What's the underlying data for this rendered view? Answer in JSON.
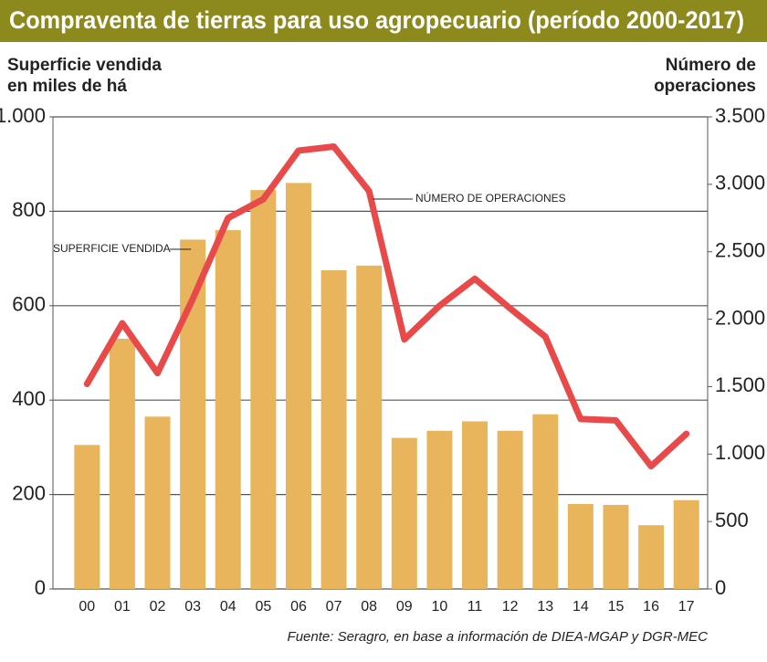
{
  "chart_data": {
    "type": "bar",
    "title": "Compraventa de tierras para uso agropecuario (período 2000-2017)",
    "y_label": [
      "Superficie vendida",
      "en miles de há"
    ],
    "y2_label": [
      "Número de",
      "operaciones"
    ],
    "categories": [
      "00",
      "01",
      "02",
      "03",
      "04",
      "05",
      "06",
      "07",
      "08",
      "09",
      "10",
      "11",
      "12",
      "13",
      "14",
      "15",
      "16",
      "17"
    ],
    "series": [
      {
        "name": "SUPERFICIE VENDIDA",
        "type": "bar",
        "color": "#e8b55c",
        "values": [
          305,
          530,
          365,
          740,
          760,
          845,
          860,
          675,
          685,
          320,
          335,
          355,
          335,
          370,
          180,
          178,
          135,
          188
        ]
      },
      {
        "name": "NÚMERO DE OPERACIONES",
        "type": "line",
        "axis": "y2",
        "color": "#e84a4a",
        "values": [
          1520,
          1970,
          1600,
          2150,
          2750,
          2890,
          3250,
          3280,
          2950,
          1850,
          2100,
          2300,
          2080,
          1870,
          1260,
          1250,
          910,
          1150
        ]
      }
    ],
    "ylim": [
      0,
      1000
    ],
    "yticks": [
      0,
      200,
      400,
      600,
      800,
      {
        "value": 1000,
        "label": "1.000"
      }
    ],
    "y2lim": [
      0,
      3500
    ],
    "y2ticks": [
      0,
      500,
      {
        "value": 1000,
        "label": "1.000"
      },
      {
        "value": 1500,
        "label": "1.500"
      },
      {
        "value": 2000,
        "label": "2.000"
      },
      {
        "value": 2500,
        "label": "2.500"
      },
      {
        "value": 3000,
        "label": "3.000"
      },
      {
        "value": 3500,
        "label": "3.500"
      }
    ],
    "grid": true,
    "source": "Fuente: Seragro, en base a información de DIEA-MGAP y DGR-MEC"
  }
}
